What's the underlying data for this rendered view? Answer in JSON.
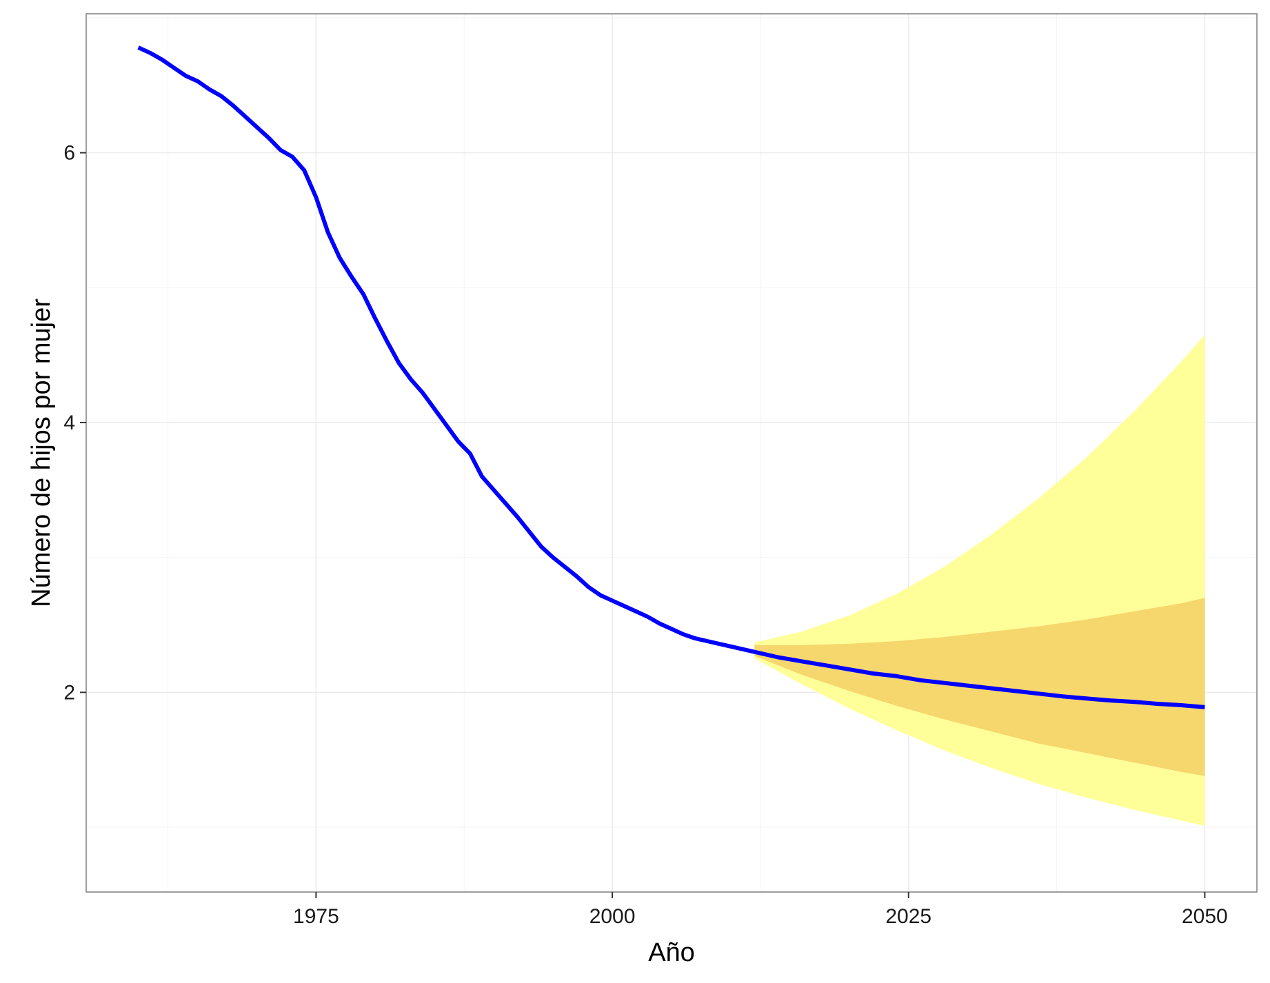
{
  "chart_data": {
    "type": "line",
    "title": "",
    "xlabel": "Año",
    "ylabel": "Número de hijos por mujer",
    "xlim": [
      1955.6,
      2054.4
    ],
    "ylim": [
      0.52,
      7.03
    ],
    "x_ticks": [
      1975,
      2000,
      2025,
      2050
    ],
    "y_ticks": [
      2,
      4,
      6
    ],
    "grid": true,
    "legend": "none",
    "colors": {
      "line": "#0000ff",
      "band_outer": "#ffff99",
      "band_inner": "#f5d76e",
      "grid": "#ebebeb",
      "panel_border": "#7f7f7f"
    },
    "series": [
      {
        "x": [
          1960,
          1961,
          1962,
          1963,
          1964,
          1965,
          1966,
          1967,
          1968,
          1969,
          1970,
          1971,
          1972,
          1973,
          1974,
          1975,
          1976,
          1977,
          1978,
          1979,
          1980,
          1981,
          1982,
          1983,
          1984,
          1985,
          1986,
          1987,
          1988,
          1989,
          1990,
          1991,
          1992,
          1993,
          1994,
          1995,
          1996,
          1997,
          1998,
          1999,
          2000,
          2001,
          2002,
          2003,
          2004,
          2005,
          2006,
          2007,
          2008,
          2009,
          2010,
          2012,
          2014,
          2016,
          2018,
          2020,
          2022,
          2024,
          2026,
          2028,
          2030,
          2032,
          2034,
          2036,
          2038,
          2040,
          2042,
          2044,
          2046,
          2048,
          2050
        ],
        "values": [
          6.78,
          6.74,
          6.69,
          6.63,
          6.57,
          6.53,
          6.47,
          6.42,
          6.35,
          6.27,
          6.19,
          6.11,
          6.02,
          5.97,
          5.87,
          5.67,
          5.41,
          5.22,
          5.08,
          4.95,
          4.77,
          4.6,
          4.44,
          4.32,
          4.22,
          4.1,
          3.98,
          3.86,
          3.77,
          3.6,
          3.5,
          3.4,
          3.3,
          3.19,
          3.08,
          3.0,
          2.93,
          2.86,
          2.78,
          2.72,
          2.68,
          2.64,
          2.6,
          2.56,
          2.51,
          2.47,
          2.43,
          2.4,
          2.38,
          2.36,
          2.34,
          2.3,
          2.26,
          2.23,
          2.2,
          2.17,
          2.14,
          2.12,
          2.09,
          2.07,
          2.05,
          2.03,
          2.01,
          1.99,
          1.97,
          1.955,
          1.94,
          1.93,
          1.915,
          1.905,
          1.89
        ]
      }
    ],
    "intervals": {
      "x": [
        2012,
        2016,
        2020,
        2024,
        2028,
        2032,
        2036,
        2040,
        2044,
        2048,
        2050
      ],
      "inner": {
        "upper": [
          2.35,
          2.35,
          2.36,
          2.38,
          2.41,
          2.45,
          2.49,
          2.54,
          2.6,
          2.66,
          2.7
        ],
        "lower": [
          2.27,
          2.13,
          2.01,
          1.9,
          1.8,
          1.71,
          1.62,
          1.55,
          1.48,
          1.41,
          1.38
        ]
      },
      "outer": {
        "upper": [
          2.37,
          2.45,
          2.57,
          2.73,
          2.93,
          3.17,
          3.44,
          3.74,
          4.08,
          4.45,
          4.65
        ],
        "lower": [
          2.25,
          2.06,
          1.88,
          1.72,
          1.57,
          1.44,
          1.32,
          1.22,
          1.13,
          1.05,
          1.01
        ]
      }
    }
  }
}
